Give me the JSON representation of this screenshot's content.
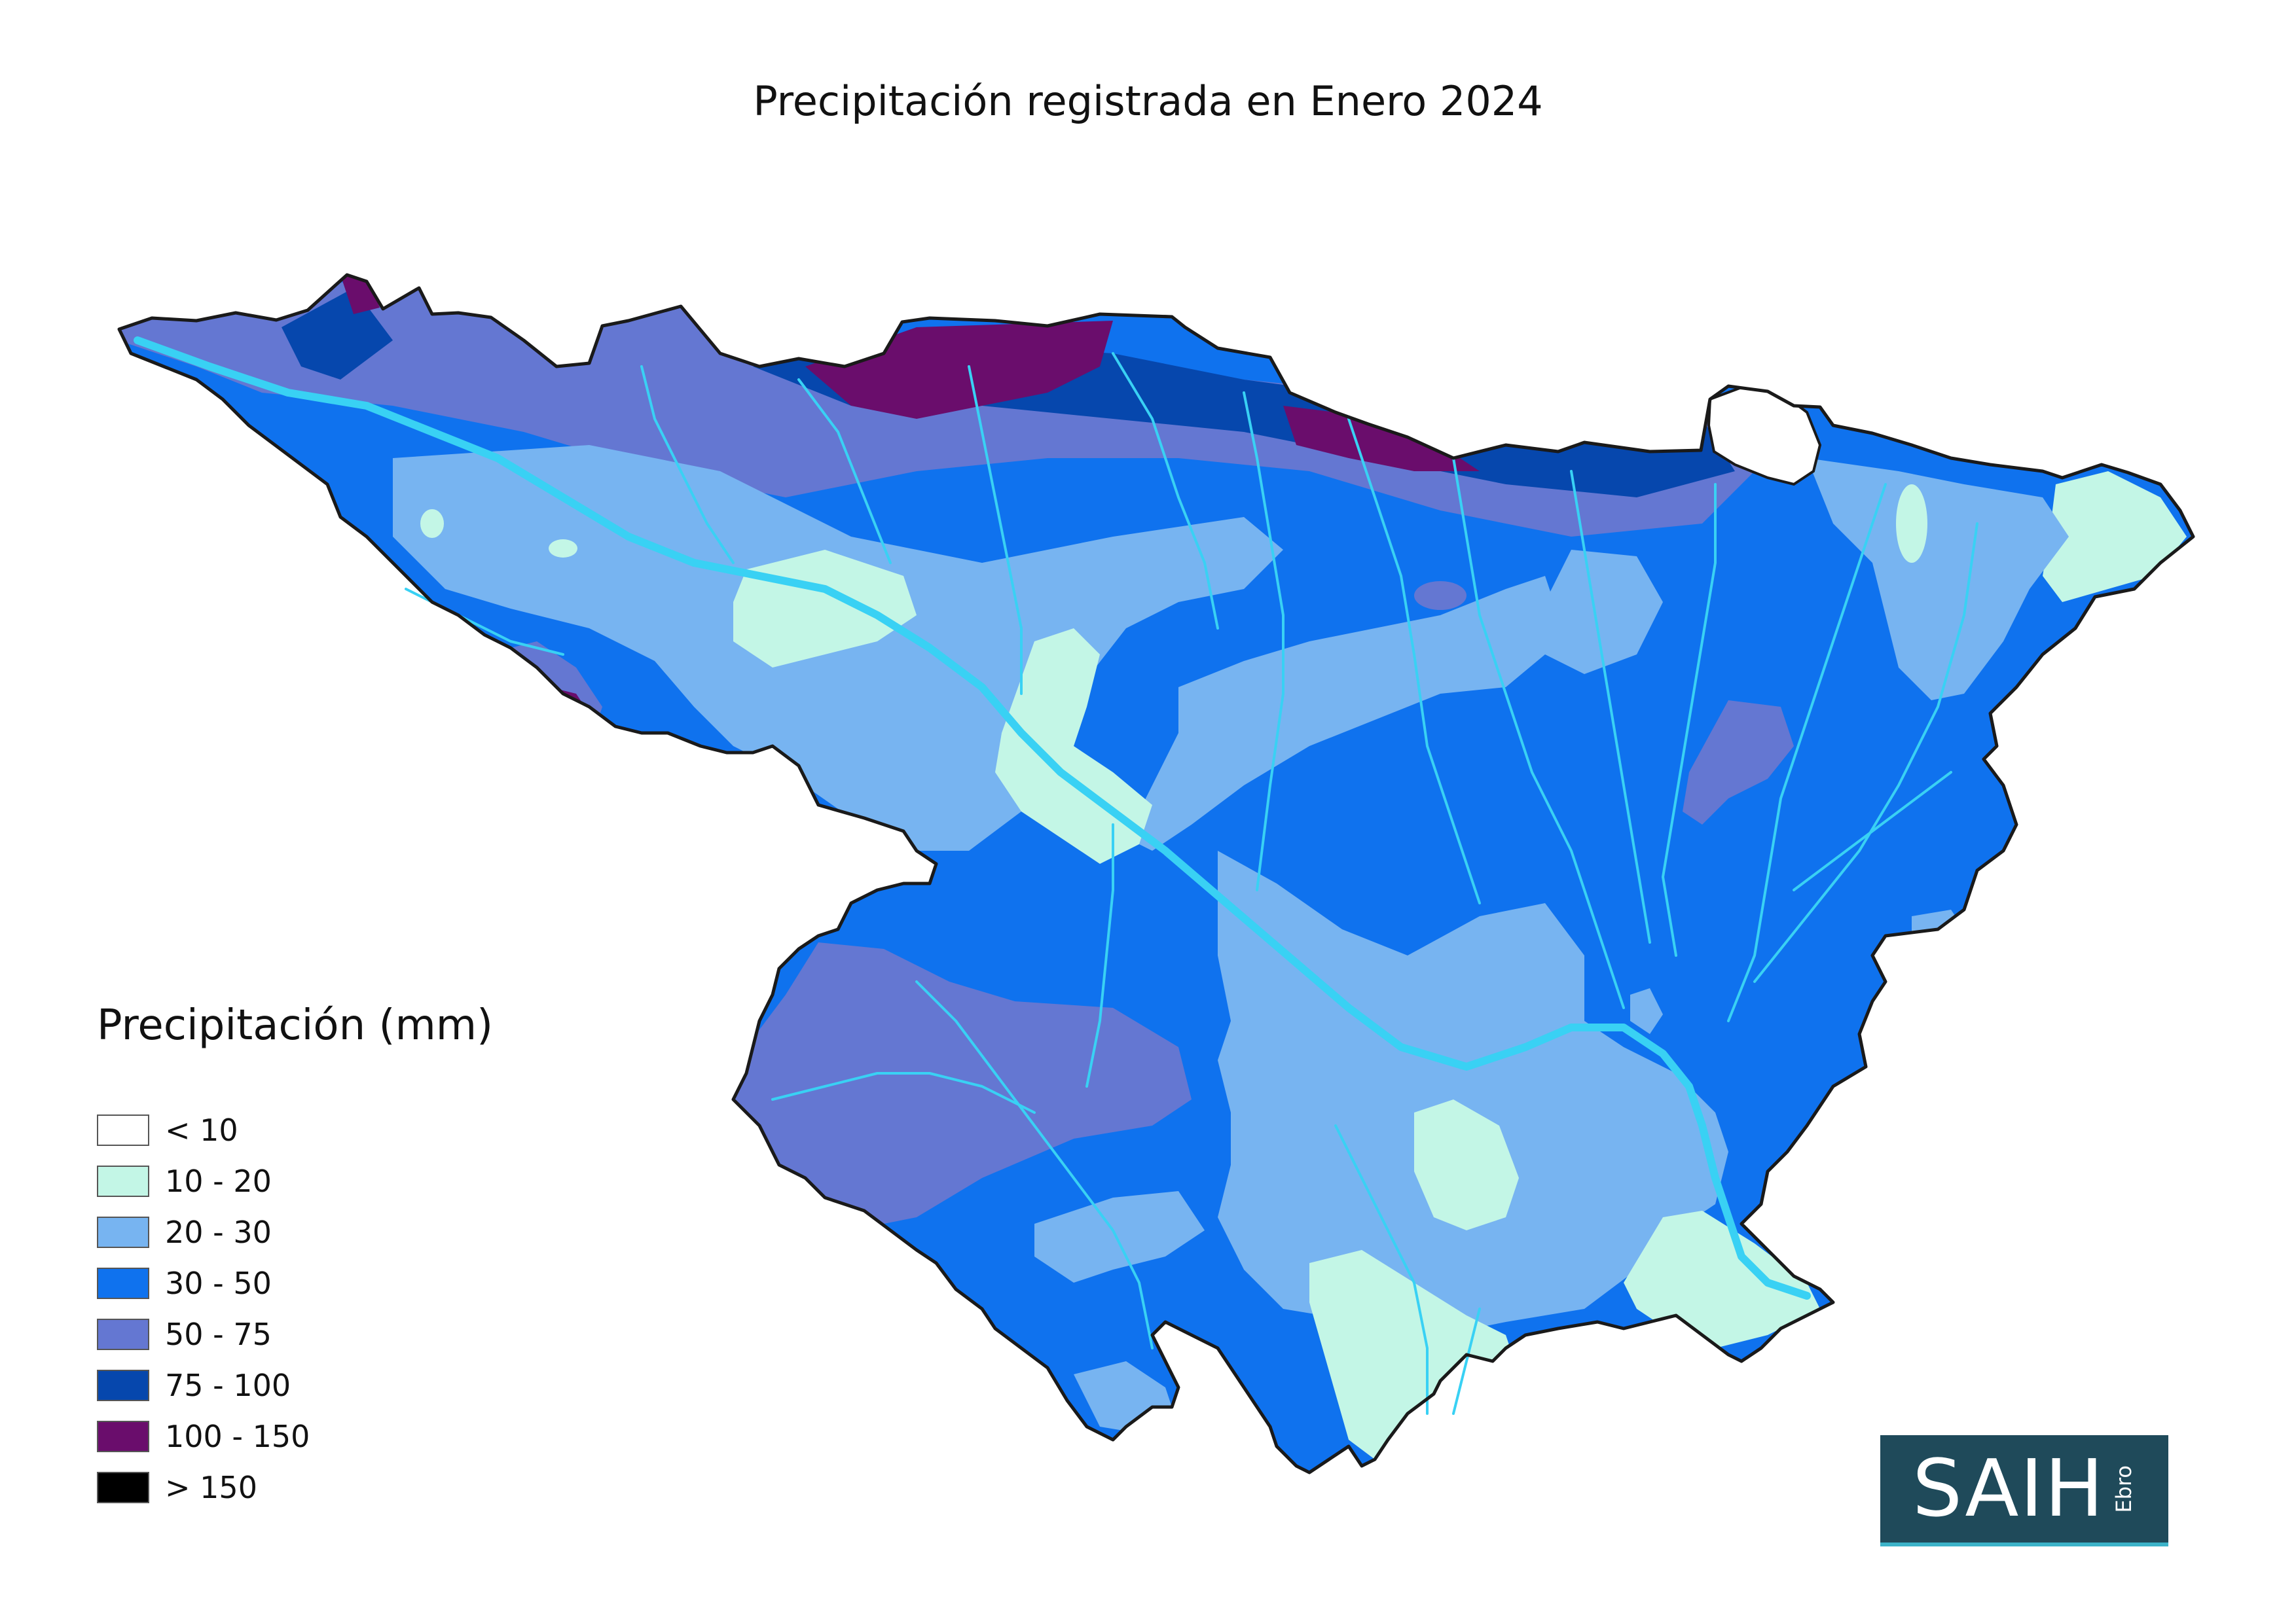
{
  "title": "Precipitación registrada en Enero 2024",
  "legend": {
    "title": "Precipitación (mm)",
    "items": [
      {
        "label": "< 10",
        "color": "#ffffff"
      },
      {
        "label": "10 - 20",
        "color": "#c3f6e6"
      },
      {
        "label": "20 - 30",
        "color": "#77b4f1"
      },
      {
        "label": "30 - 50",
        "color": "#0f72ee"
      },
      {
        "label": "50 - 75",
        "color": "#6477d2"
      },
      {
        "label": "75 - 100",
        "color": "#0647ad"
      },
      {
        "label": "100 - 150",
        "color": "#6a0d6c"
      },
      {
        "label": "> 150",
        "color": "#000000"
      }
    ]
  },
  "logo": {
    "main": "SAIH",
    "sub": "Ebro"
  },
  "colors": {
    "river": "#39d1f4",
    "boundary": "#1a1a1a"
  }
}
